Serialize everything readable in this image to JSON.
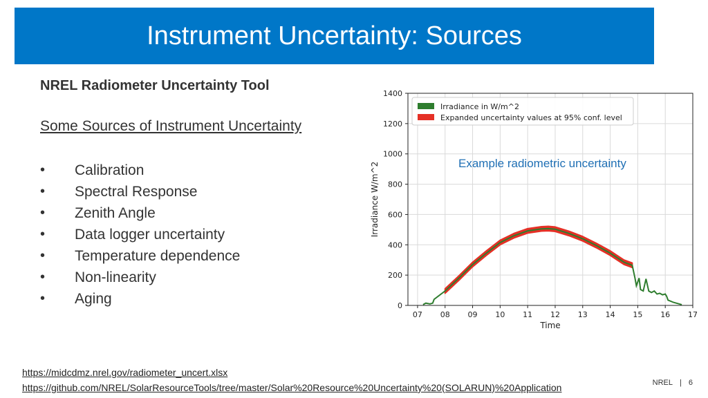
{
  "slide": {
    "title": "Instrument Uncertainty: Sources",
    "heading": "NREL Radiometer Uncertainty Tool",
    "subheading": "Some Sources of Instrument Uncertainty",
    "bullets": [
      "Calibration",
      "Spectral Response",
      "Zenith Angle",
      "Data logger uncertainty",
      "Temperature dependence",
      "Non-linearity",
      "Aging"
    ],
    "bullet_glyph": "•",
    "annotation": "Example radiometric uncertainty",
    "links": [
      "https://midcdmz.nrel.gov/radiometer_uncert.xlsx",
      "https://github.com/NREL/SolarResourceTools/tree/master/Solar%20Resource%20Uncertainty%20(SOLARUN)%20Application"
    ],
    "footer": {
      "org": "NREL",
      "separator": "|",
      "page": "6"
    },
    "colors": {
      "title_bar": "#0077c8",
      "irradiance": "#2e7d2e",
      "uncertainty": "#e53026",
      "annotation": "#1f6fb4"
    }
  },
  "chart_data": {
    "type": "line",
    "xlabel": "Time",
    "ylabel": "Irradiance W/m^2",
    "xlim": [
      6.65,
      17
    ],
    "ylim": [
      0,
      1400
    ],
    "xticks": [
      7,
      8,
      9,
      10,
      11,
      12,
      13,
      14,
      15,
      16,
      17
    ],
    "xtick_labels": [
      "07",
      "08",
      "09",
      "10",
      "11",
      "12",
      "13",
      "14",
      "15",
      "16",
      "17"
    ],
    "yticks": [
      0,
      200,
      400,
      600,
      800,
      1000,
      1200,
      1400
    ],
    "grid": true,
    "legend_position": "top-left",
    "series": [
      {
        "name": "Irradiance in W/m^2",
        "color": "#2e7d2e",
        "x": [
          7.2,
          7.3,
          7.45,
          7.55,
          7.6,
          8.0,
          8.5,
          9.0,
          9.5,
          10.0,
          10.5,
          11.0,
          11.5,
          11.75,
          12.0,
          12.5,
          13.0,
          13.5,
          14.0,
          14.5,
          14.8,
          14.9,
          14.95,
          15.05,
          15.1,
          15.2,
          15.3,
          15.4,
          15.5,
          15.6,
          15.7,
          15.8,
          15.9,
          16.0,
          16.05,
          16.1,
          16.3,
          16.6
        ],
        "y": [
          5,
          15,
          10,
          15,
          40,
          95,
          180,
          270,
          345,
          415,
          460,
          492,
          505,
          507,
          503,
          475,
          440,
          395,
          345,
          285,
          265,
          180,
          130,
          180,
          105,
          95,
          175,
          95,
          85,
          95,
          75,
          80,
          70,
          75,
          60,
          35,
          20,
          5
        ]
      },
      {
        "name": "Expanded uncertainty values at 95% conf. level",
        "color": "#e53026",
        "x_start": 7.7,
        "x_end": 14.85,
        "half_width": 15
      }
    ]
  }
}
